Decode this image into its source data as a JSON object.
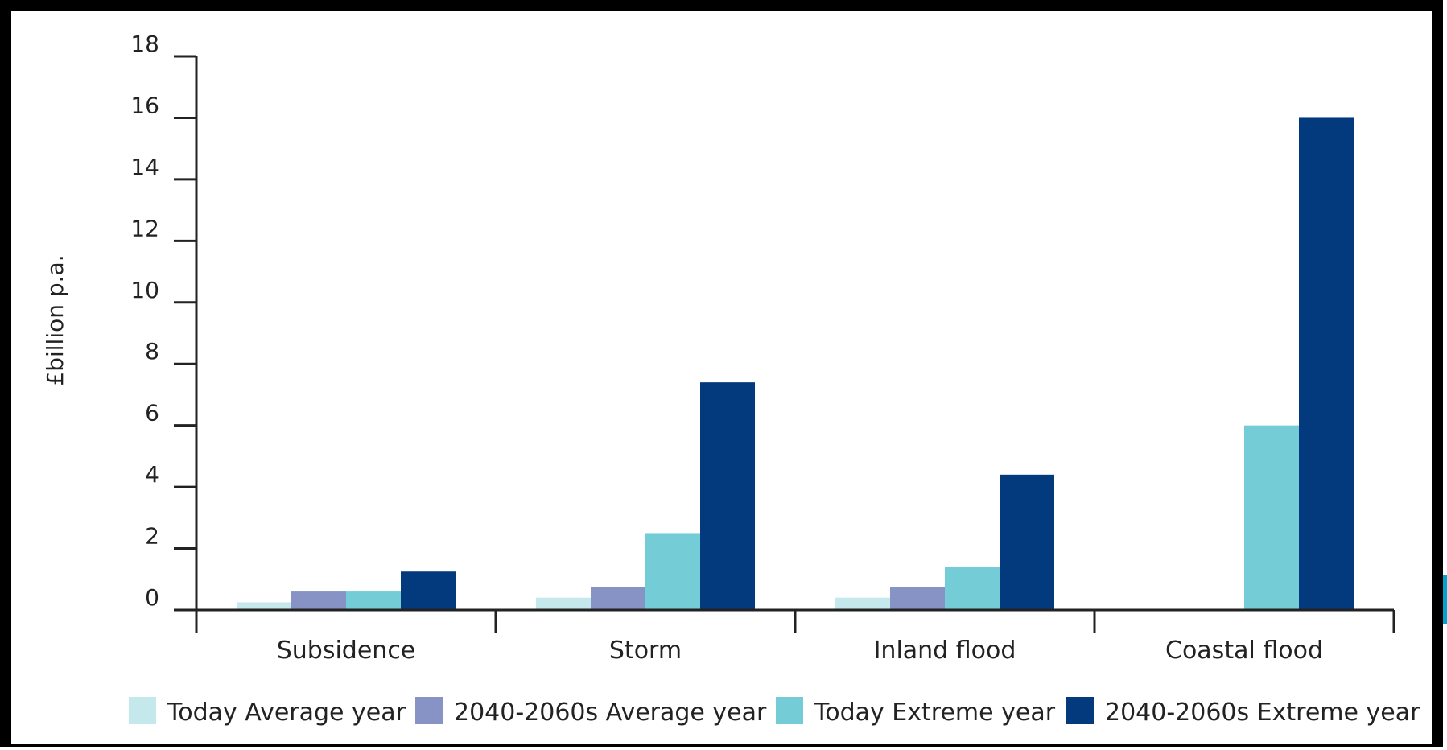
{
  "chart_data": {
    "type": "bar",
    "title": "",
    "xlabel": "",
    "ylabel": "£billion p.a.",
    "ylim": [
      0,
      18
    ],
    "yticks": [
      0,
      2,
      4,
      6,
      8,
      10,
      12,
      14,
      16,
      18
    ],
    "grid": false,
    "legend_position": "bottom",
    "categories": [
      "Subsidence",
      "Storm",
      "Inland flood",
      "Coastal flood"
    ],
    "series": [
      {
        "name": "Today Average year",
        "color": "#c5e8ec",
        "values": [
          0.25,
          0.4,
          0.4,
          0
        ]
      },
      {
        "name": "2040-2060s Average year",
        "color": "#8793c4",
        "values": [
          0.6,
          0.75,
          0.75,
          0
        ]
      },
      {
        "name": "Today Extreme year",
        "color": "#74ccd6",
        "values": [
          0.6,
          2.5,
          1.4,
          6
        ]
      },
      {
        "name": "2040-2060s Extreme year",
        "color": "#033a7d",
        "values": [
          1.25,
          7.4,
          4.4,
          16
        ]
      }
    ]
  },
  "colors": {
    "frame_border": "#000000",
    "axis": "#222222",
    "side_accent": "#00a4cc"
  }
}
